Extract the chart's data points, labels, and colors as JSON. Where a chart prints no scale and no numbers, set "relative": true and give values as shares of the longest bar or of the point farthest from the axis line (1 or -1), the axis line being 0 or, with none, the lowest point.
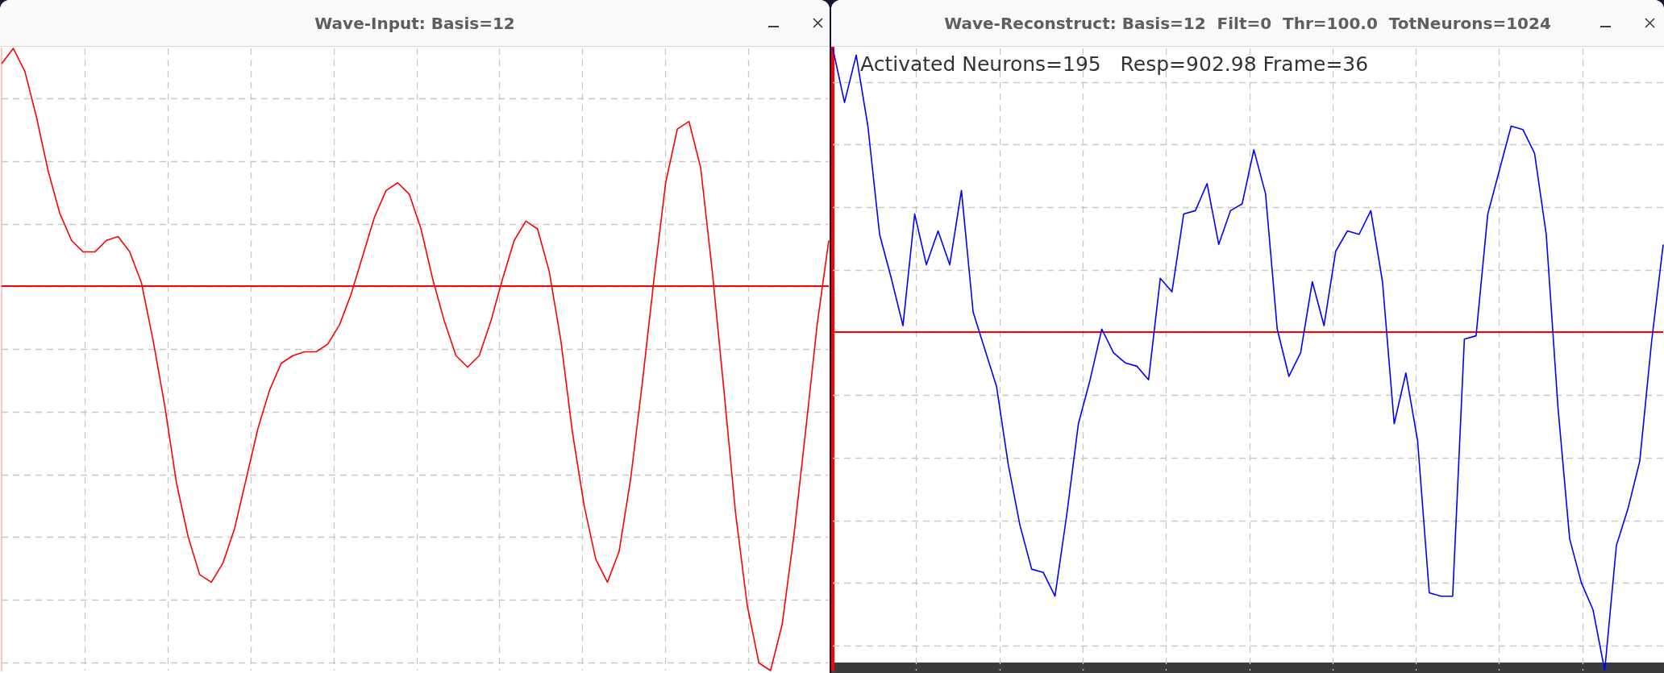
{
  "chart_data": [
    {
      "type": "line",
      "title": "Wave-Input: Basis=12",
      "relative": true,
      "grid": true,
      "ref_lines": [
        {
          "axis": "y",
          "value": 0,
          "color": "#ff0000"
        }
      ],
      "categories": [
        null,
        null,
        null,
        null,
        null,
        null,
        null,
        null,
        null,
        null,
        null,
        null,
        null,
        null,
        null,
        null,
        null,
        null,
        null,
        null,
        null,
        null,
        null,
        null,
        null,
        null,
        null,
        null,
        null,
        null,
        null,
        null,
        null,
        null,
        null,
        null,
        null,
        null,
        null,
        null,
        null,
        null,
        null,
        null,
        null,
        null,
        null,
        null,
        null,
        null,
        null,
        null,
        null,
        null,
        null,
        null,
        null,
        null,
        null,
        null,
        null,
        null,
        null,
        null,
        null,
        null,
        null,
        null,
        null,
        null,
        null,
        null
      ],
      "series": [
        {
          "color": "#ff0000",
          "values": [
            0.58,
            0.62,
            0.56,
            0.44,
            0.3,
            0.19,
            0.12,
            0.09,
            0.09,
            0.12,
            0.13,
            0.09,
            0.01,
            -0.14,
            -0.31,
            -0.51,
            -0.65,
            -0.75,
            -0.77,
            -0.72,
            -0.63,
            -0.5,
            -0.37,
            -0.27,
            -0.2,
            -0.18,
            -0.17,
            -0.17,
            -0.15,
            -0.1,
            -0.02,
            0.08,
            0.18,
            0.25,
            0.27,
            0.24,
            0.15,
            0.02,
            -0.09,
            -0.18,
            -0.21,
            -0.18,
            -0.09,
            0.02,
            0.12,
            0.17,
            0.15,
            0.04,
            -0.14,
            -0.38,
            -0.57,
            -0.71,
            -0.77,
            -0.69,
            -0.5,
            -0.25,
            0.02,
            0.27,
            0.41,
            0.43,
            0.31,
            0.04,
            -0.27,
            -0.59,
            -0.83,
            -0.98,
            -1,
            -0.88,
            -0.65,
            -0.38,
            -0.1,
            0.12
          ]
        }
      ]
    },
    {
      "type": "line",
      "title": "Wave-Reconstruct: Basis=12  Filt=0  Thr=100.0  TotNeurons=1024",
      "relative": true,
      "grid": true,
      "ref_lines": [
        {
          "axis": "y",
          "value": 0,
          "color": "#ff0000"
        }
      ],
      "annotations": [
        "Activated Neurons=195   Resp=902.98 Frame=36"
      ],
      "categories": [
        null,
        null,
        null,
        null,
        null,
        null,
        null,
        null,
        null,
        null,
        null,
        null,
        null,
        null,
        null,
        null,
        null,
        null,
        null,
        null,
        null,
        null,
        null,
        null,
        null,
        null,
        null,
        null,
        null,
        null,
        null,
        null,
        null,
        null,
        null,
        null,
        null,
        null,
        null,
        null,
        null,
        null,
        null,
        null,
        null,
        null,
        null,
        null,
        null,
        null,
        null,
        null,
        null,
        null,
        null,
        null,
        null,
        null,
        null,
        null,
        null,
        null,
        null,
        null,
        null,
        null,
        null,
        null,
        null,
        null,
        null,
        null
      ],
      "series": [
        {
          "color": "#0000ff",
          "values": [
            0.84,
            0.68,
            0.82,
            0.61,
            0.29,
            0.16,
            0.02,
            0.35,
            0.2,
            0.3,
            0.2,
            0.42,
            0.06,
            -0.05,
            -0.16,
            -0.39,
            -0.57,
            -0.7,
            -0.71,
            -0.78,
            -0.54,
            -0.27,
            -0.14,
            0.01,
            -0.06,
            -0.09,
            -0.1,
            -0.14,
            0.16,
            0.12,
            0.35,
            0.36,
            0.44,
            0.26,
            0.36,
            0.38,
            0.54,
            0.41,
            0.01,
            -0.13,
            -0.06,
            0.15,
            0.02,
            0.24,
            0.3,
            0.29,
            0.36,
            0.15,
            -0.27,
            -0.12,
            -0.32,
            -0.77,
            -0.78,
            -0.78,
            -0.02,
            -0.01,
            0.35,
            0.48,
            0.61,
            0.6,
            0.53,
            0.29,
            -0.22,
            -0.61,
            -0.74,
            -0.82,
            -1,
            -0.63,
            -0.52,
            -0.38,
            -0.03,
            0.26
          ]
        }
      ]
    }
  ]
}
